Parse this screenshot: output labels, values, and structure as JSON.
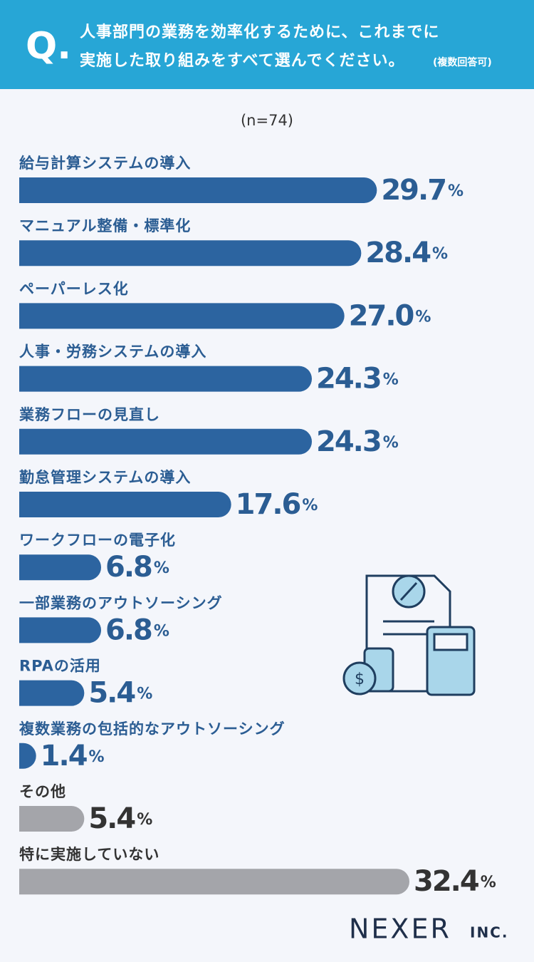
{
  "chart_data": {
    "type": "bar",
    "orientation": "horizontal",
    "header": {
      "mark": "Q.",
      "title_lines": [
        "人事部門の業務を効率化するために、これまでに",
        "実施した取り組みをすべて選んでください。"
      ],
      "note": "(複数回答可)"
    },
    "subtitle": "(n=74)",
    "categories": [
      "給与計算システムの導入",
      "マニュアル整備・標準化",
      "ペーパーレス化",
      "人事・労務システムの導入",
      "業務フローの見直し",
      "勤怠管理システムの導入",
      "ワークフローの電子化",
      "一部業務のアウトソーシング",
      "RPAの活用",
      "複数業務の包括的なアウトソーシング",
      "その他",
      "特に実施していない"
    ],
    "values": [
      29.7,
      28.4,
      27.0,
      24.3,
      24.3,
      17.6,
      6.8,
      6.8,
      5.4,
      1.4,
      5.4,
      32.4
    ],
    "value_labels": [
      "29.7%",
      "28.4%",
      "27.0%",
      "24.3%",
      "24.3%",
      "17.6%",
      "6.8%",
      "6.8%",
      "5.4%",
      "1.4%",
      "5.4%",
      "32.4%"
    ],
    "colors": [
      "#2c64a0",
      "#2c64a0",
      "#2c64a0",
      "#2c64a0",
      "#2c64a0",
      "#2c64a0",
      "#2c64a0",
      "#2c64a0",
      "#2c64a0",
      "#2c64a0",
      "#a4a5aa",
      "#a4a5aa"
    ],
    "footer": {
      "brand": "NEXER",
      "suffix": "INC."
    }
  }
}
